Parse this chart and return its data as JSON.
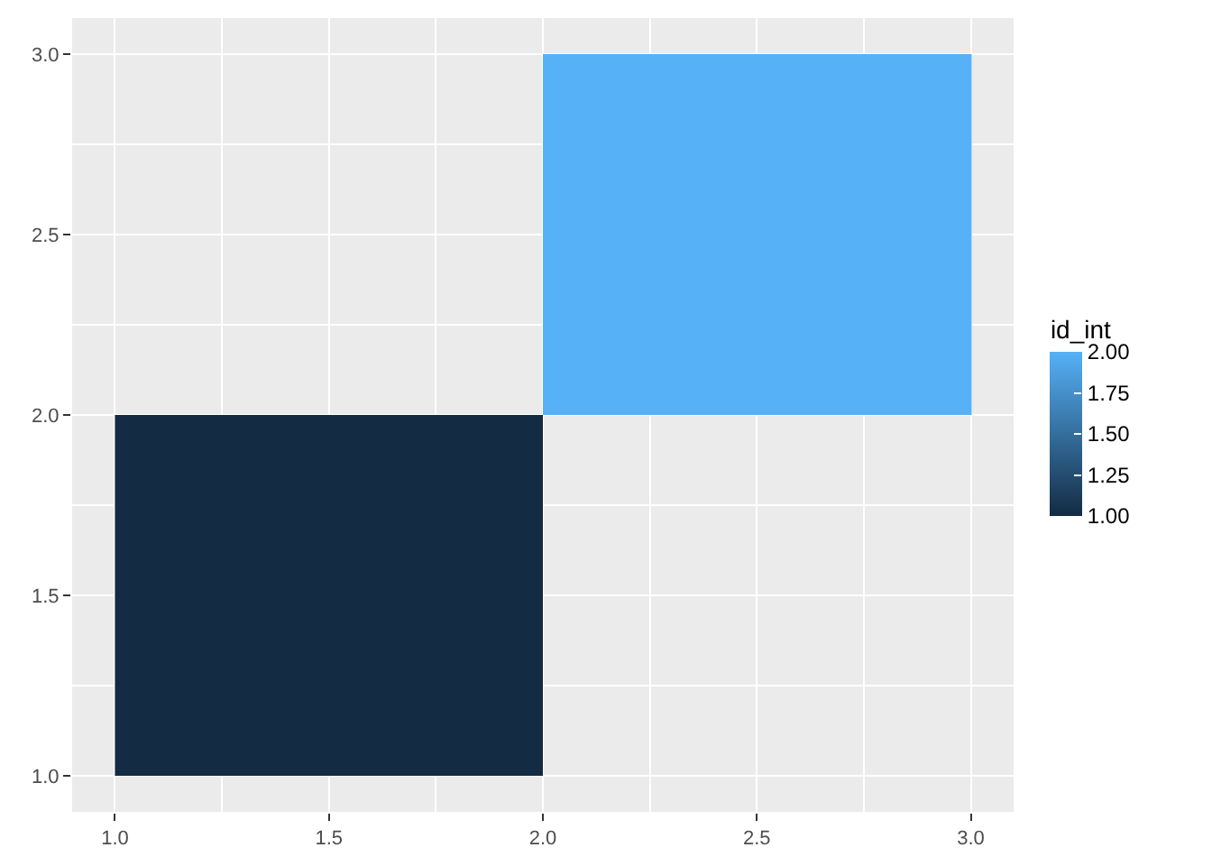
{
  "chart_data": {
    "type": "heatmap",
    "x": [
      1.5,
      2.5
    ],
    "y": [
      2.5,
      1.5
    ],
    "cells": [
      [
        null,
        2
      ],
      [
        1,
        null
      ]
    ],
    "colors": [
      "#132b43",
      "#56b1f7"
    ],
    "clabel": "id_int",
    "clim": [
      1,
      2
    ],
    "cticks": [
      {
        "value": 1,
        "label": "1.00"
      },
      {
        "value": 1.25,
        "label": "1.25"
      },
      {
        "value": 1.5,
        "label": "1.50"
      },
      {
        "value": 1.75,
        "label": "1.75"
      },
      {
        "value": 2,
        "label": "2.00"
      }
    ],
    "xlim": [
      0.9,
      3.1
    ],
    "ylim": [
      0.9,
      3.1
    ],
    "xticks": [
      {
        "value": 1,
        "label": "1.0"
      },
      {
        "value": 1.5,
        "label": "1.5"
      },
      {
        "value": 2,
        "label": "2.0"
      },
      {
        "value": 2.5,
        "label": "2.5"
      },
      {
        "value": 3,
        "label": "3.0"
      }
    ],
    "yticks": [
      {
        "value": 1,
        "label": "1.0"
      },
      {
        "value": 1.5,
        "label": "1.5"
      },
      {
        "value": 2,
        "label": "2.0"
      },
      {
        "value": 2.5,
        "label": "2.5"
      },
      {
        "value": 3,
        "label": "3.0"
      }
    ],
    "grid": true
  }
}
